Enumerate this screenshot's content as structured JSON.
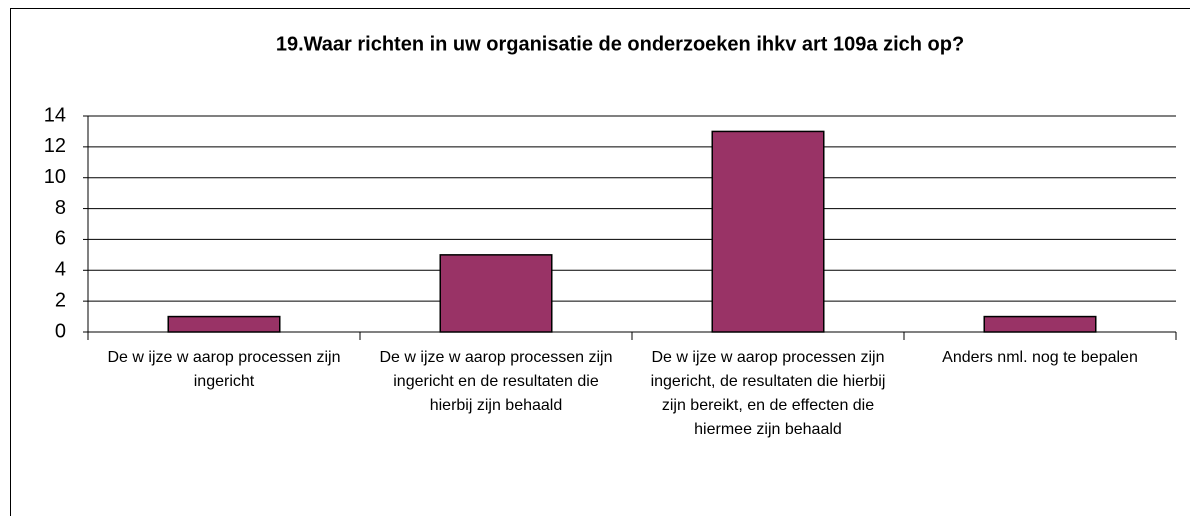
{
  "chart_data": {
    "type": "bar",
    "title": "19.Waar richten in uw organisatie de onderzoeken ihkv art 109a zich op?",
    "categories": [
      "De w ijze w aarop processen zijn ingericht",
      "De w ijze w aarop processen zijn ingericht en de resultaten die hierbij zijn behaald",
      "De w ijze w aarop processen zijn ingericht, de resultaten die hierbij zijn bereikt, en de effecten die hiermee zijn behaald",
      "Anders nml. nog te bepalen"
    ],
    "values": [
      1,
      5,
      13,
      1
    ],
    "color": "#993366",
    "ylim": [
      0,
      14
    ],
    "yticks": [
      0,
      2,
      4,
      6,
      8,
      10,
      12,
      14
    ],
    "grid": true
  }
}
